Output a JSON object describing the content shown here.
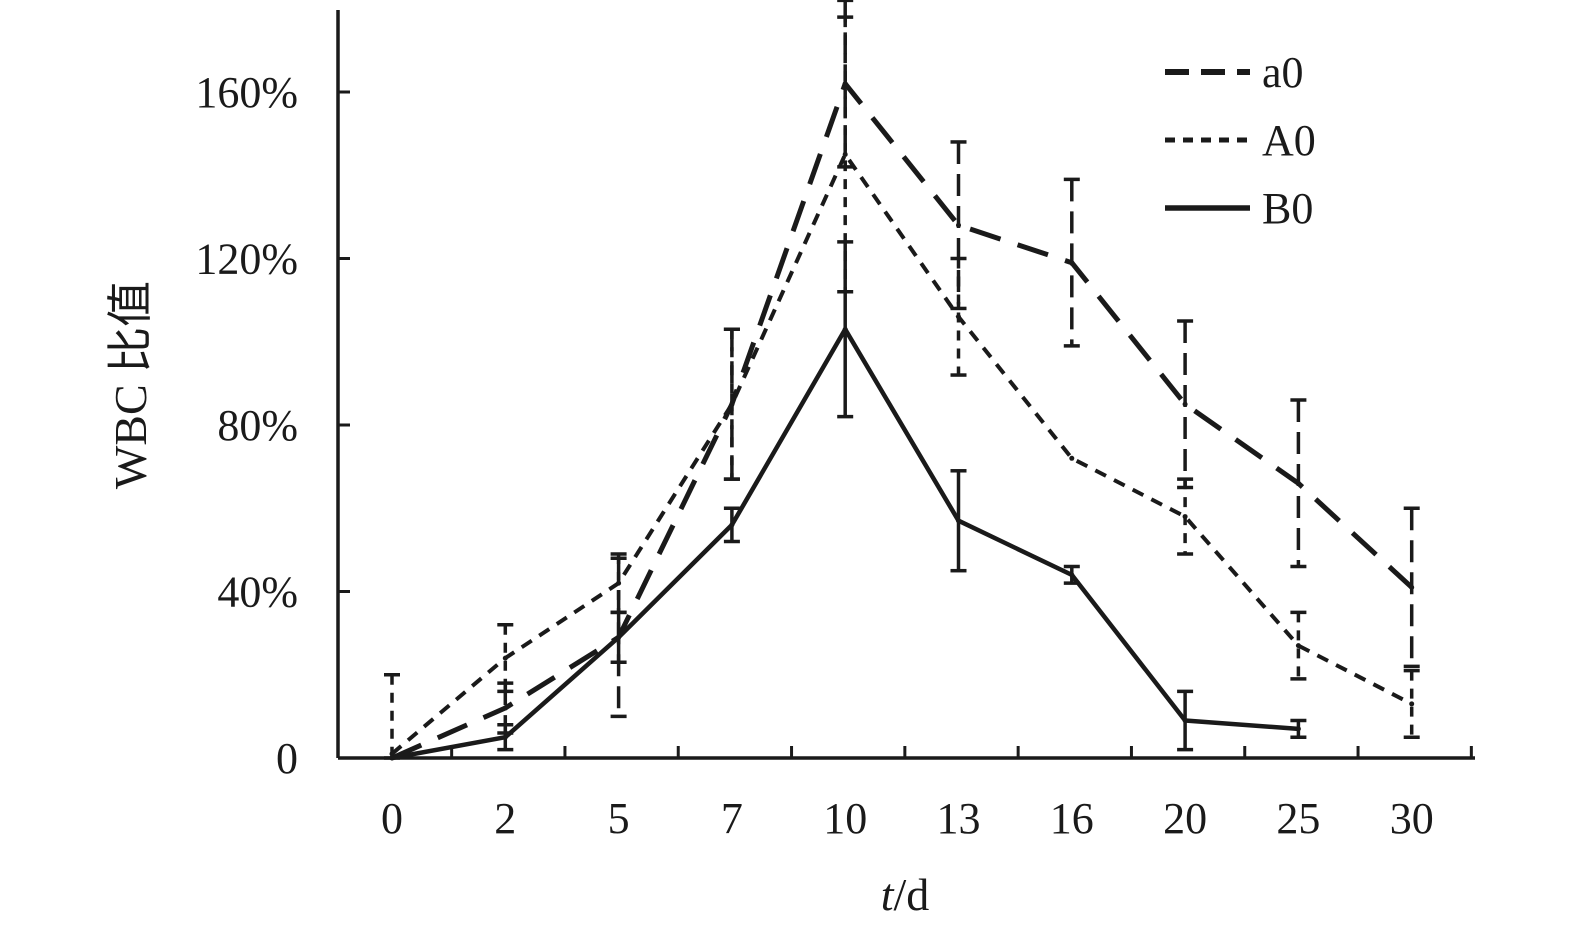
{
  "chart_data": {
    "type": "line",
    "title": "",
    "xlabel_italic": "t",
    "xlabel_rest": "/d",
    "ylabel": "WBC 比值",
    "categories": [
      "0",
      "2",
      "5",
      "7",
      "10",
      "13",
      "16",
      "20",
      "25",
      "30"
    ],
    "y_ticks": [
      "0",
      "40%",
      "80%",
      "120%",
      "160%"
    ],
    "ylim": [
      0,
      180
    ],
    "grid": false,
    "legend_position": "top-right",
    "series": [
      {
        "name": "a0",
        "style": "long-dash",
        "values": [
          0,
          12,
          29,
          85,
          162,
          128,
          119,
          85,
          66,
          41
        ],
        "errors": [
          0,
          6,
          19,
          18,
          20,
          20,
          20,
          20,
          20,
          19
        ]
      },
      {
        "name": "A0",
        "style": "short-dash",
        "values": [
          1,
          24,
          42,
          85,
          145,
          106,
          72,
          58,
          27,
          13
        ],
        "errors": [
          19,
          8,
          7,
          18,
          33,
          14,
          0,
          9,
          8,
          8
        ]
      },
      {
        "name": "B0",
        "style": "solid",
        "values": [
          0,
          5,
          29,
          56,
          103,
          57,
          44,
          9,
          7,
          null
        ],
        "errors": [
          0,
          3,
          6,
          4,
          21,
          12,
          2,
          7,
          2,
          null
        ]
      }
    ],
    "colors": {
      "ink": "#1a1a1a"
    }
  }
}
